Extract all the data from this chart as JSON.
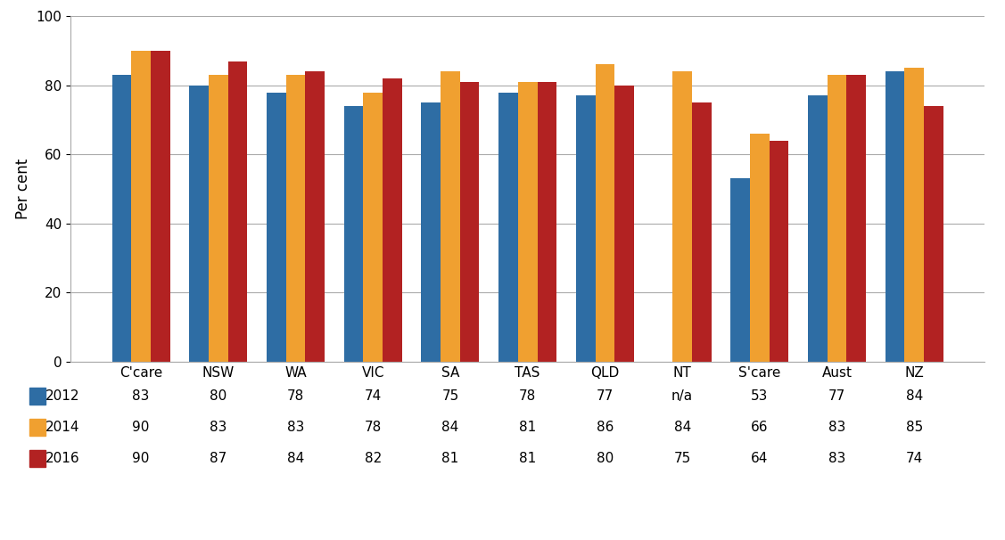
{
  "categories": [
    "C'care",
    "NSW",
    "WA",
    "VIC",
    "SA",
    "TAS",
    "QLD",
    "NT",
    "S'care",
    "Aust",
    "NZ"
  ],
  "series": {
    "2012": [
      83,
      80,
      78,
      74,
      75,
      78,
      77,
      null,
      53,
      77,
      84
    ],
    "2014": [
      90,
      83,
      83,
      78,
      84,
      81,
      86,
      84,
      66,
      83,
      85
    ],
    "2016": [
      90,
      87,
      84,
      82,
      81,
      81,
      80,
      75,
      64,
      83,
      74
    ]
  },
  "legend_data": {
    "2012": [
      "83",
      "80",
      "78",
      "74",
      "75",
      "78",
      "77",
      "n/a",
      "53",
      "77",
      "84"
    ],
    "2014": [
      "90",
      "83",
      "83",
      "78",
      "84",
      "81",
      "86",
      "84",
      "66",
      "83",
      "85"
    ],
    "2016": [
      "90",
      "87",
      "84",
      "82",
      "81",
      "81",
      "80",
      "75",
      "64",
      "83",
      "74"
    ]
  },
  "colors": {
    "2012": "#2E6DA4",
    "2014": "#F0A030",
    "2016": "#B22222"
  },
  "ylabel": "Per cent",
  "ylim": [
    0,
    100
  ],
  "yticks": [
    0,
    20,
    40,
    60,
    80,
    100
  ],
  "legend_labels": [
    "2012",
    "2014",
    "2016"
  ],
  "bar_width": 0.25,
  "background_color": "#ffffff",
  "grid_color": "#aaaaaa",
  "tick_fontsize": 11,
  "legend_fontsize": 11,
  "ylabel_fontsize": 12
}
